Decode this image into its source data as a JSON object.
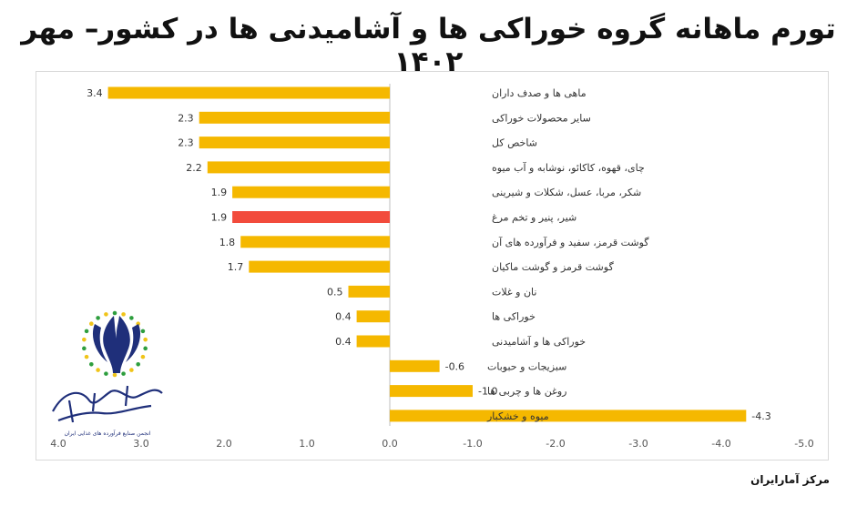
{
  "header": {
    "title": "تورم ماهانه گروه خوراکی ها و آشامیدنی ها در کشور– مهر ۱۴۰۲"
  },
  "footer": {
    "source": "مرکز آمارایران"
  },
  "logo": {
    "text": "انجمن صنایع فرآورده های غذایی ایران"
  },
  "colors": {
    "bar": "#F5B800",
    "highlight": "#F24B3C",
    "axis": "#bfbfbf"
  },
  "chart_data": {
    "type": "bar",
    "orientation": "horizontal",
    "x_reversed": true,
    "xlim": [
      -5.0,
      4.0
    ],
    "ticks": [
      "4.0",
      "3.0",
      "2.0",
      "1.0",
      "0.0",
      "-1.0",
      "-2.0",
      "-3.0",
      "-4.0",
      "-5.0"
    ],
    "tick_values": [
      4,
      3,
      2,
      1,
      0,
      -1,
      -2,
      -3,
      -4,
      -5
    ],
    "categories": [
      "ماهی ها و صدف داران",
      "سایر محصولات خوراکی",
      "شاخص کل",
      "چای، قهوه، کاکائو، نوشابه و آب میوه",
      "شکر، مربا، عسل، شکلات و شیرینی",
      "شیر، پنیر و تخم مرغ",
      "گوشت قرمز، سفید و فرآورده های آن",
      "گوشت قرمز و گوشت ماکیان",
      "نان و غلات",
      "خوراکی ها",
      "خوراکی ها و  آشامیدنی",
      "سبزیجات و حبوبات",
      "روغن ها و چربی ها",
      "میوه و خشکبار"
    ],
    "values": [
      3.4,
      2.3,
      2.3,
      2.2,
      1.9,
      1.9,
      1.8,
      1.7,
      0.5,
      0.4,
      0.4,
      -0.6,
      -1.0,
      -4.3
    ],
    "value_labels": [
      "3.4",
      "2.3",
      "2.3",
      "2.2",
      "1.9",
      "1.9",
      "1.8",
      "1.7",
      "0.5",
      "0.4",
      "0.4",
      "-0.6",
      "-1.0",
      "-4.3"
    ],
    "highlight_index": 5,
    "grid": false
  }
}
